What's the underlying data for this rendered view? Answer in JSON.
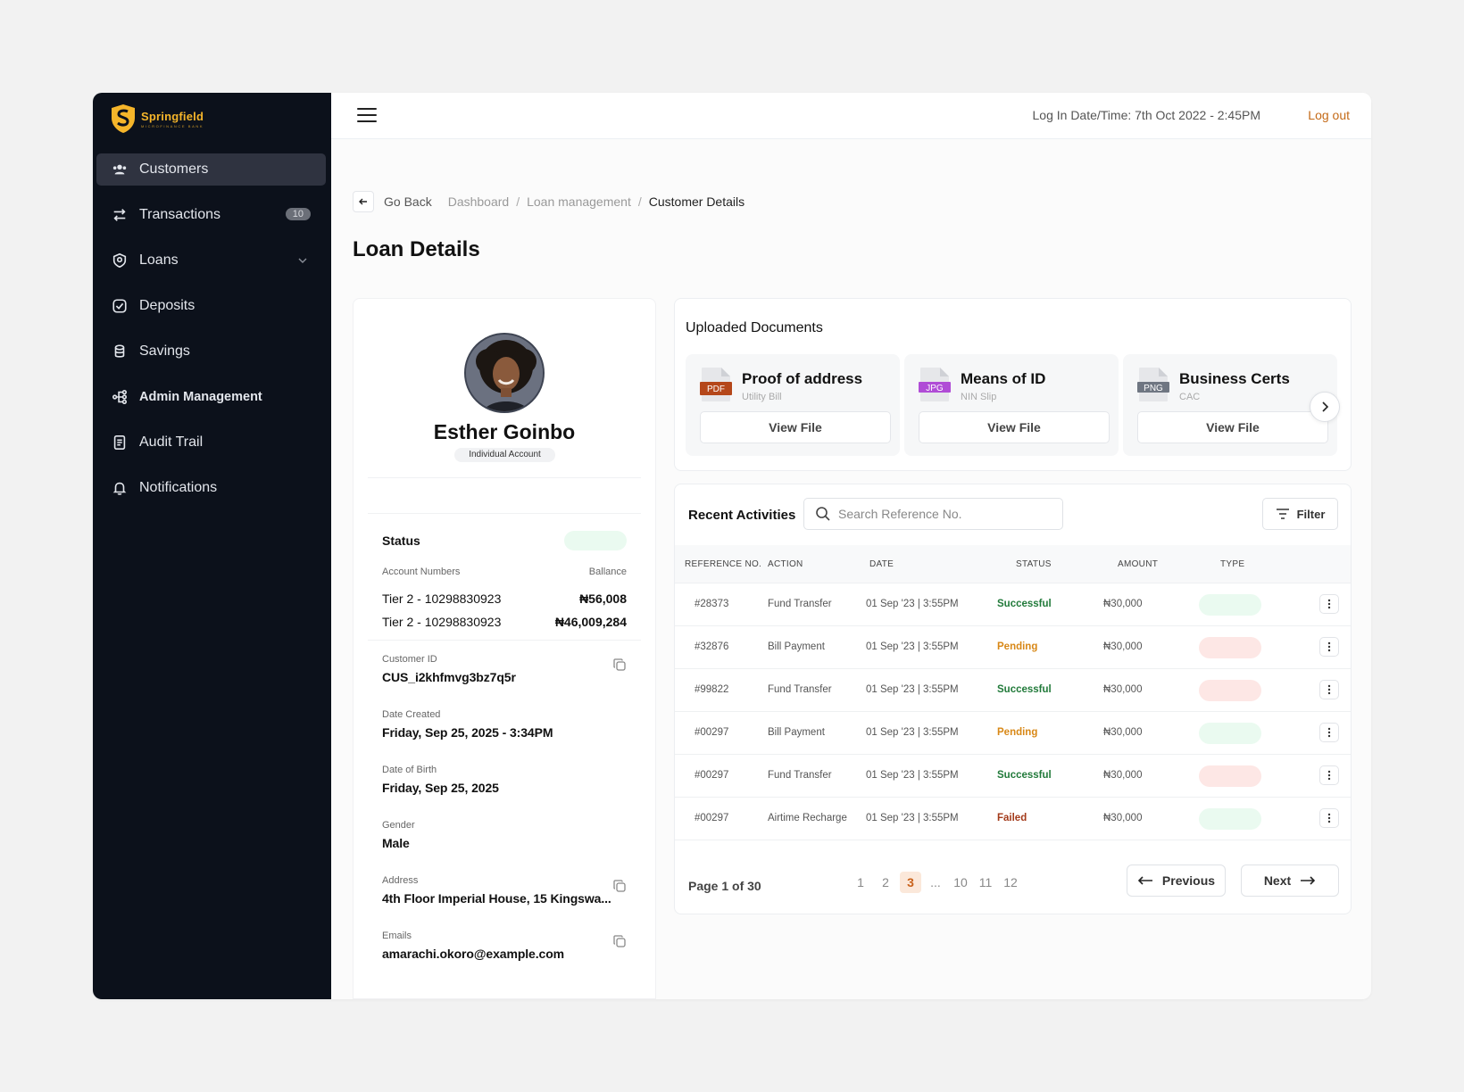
{
  "brand": {
    "name": "Springfield",
    "tagline": "MICROFINANCE BANK",
    "accent": "#f5b52a"
  },
  "sidebar": {
    "items": [
      {
        "label": "Customers",
        "icon": "users-icon",
        "active": true
      },
      {
        "label": "Transactions",
        "icon": "transfer-arrows-icon",
        "badge": "10"
      },
      {
        "label": "Loans",
        "icon": "loan-shield-icon",
        "has_dropdown": true
      },
      {
        "label": "Deposits",
        "icon": "deposit-icon"
      },
      {
        "label": "Savings",
        "icon": "coins-icon"
      },
      {
        "label": "Admin Management",
        "icon": "hierarchy-icon"
      },
      {
        "label": "Audit Trail",
        "icon": "document-list-icon"
      },
      {
        "label": "Notifications",
        "icon": "bell-icon"
      }
    ]
  },
  "header": {
    "login_time": "Log In Date/Time: 7th Oct 2022 - 2:45PM",
    "logout_label": "Log out",
    "logout_color": "#c46a17"
  },
  "breadcrumb": {
    "back_label": "Go Back",
    "items": [
      "Dashboard",
      "Loan management",
      "Customer Details"
    ]
  },
  "page_title": "Loan Details",
  "profile": {
    "name": "Esther Goinbo",
    "account_type": "Individual Account",
    "status_label": "Status",
    "accounts_header": "Account Numbers",
    "balance_header": "Ballance",
    "accounts": [
      {
        "number": "Tier 2 - 10298830923",
        "balance": "₦56,008"
      },
      {
        "number": "Tier 2 - 10298830923",
        "balance": "₦46,009,284"
      }
    ],
    "customer_id_label": "Customer ID",
    "customer_id": "CUS_i2khfmvg3bz7q5r",
    "date_created_label": "Date Created",
    "date_created": "Friday, Sep 25, 2025 - 3:34PM",
    "dob_label": "Date of Birth",
    "dob": "Friday, Sep 25, 2025",
    "gender_label": "Gender",
    "gender": "Male",
    "address_label": "Address",
    "address": "4th Floor Imperial House, 15 Kingswa...",
    "emails_label": "Emails",
    "email": "amarachi.okoro@example.com"
  },
  "documents": {
    "title": "Uploaded Documents",
    "items": [
      {
        "name": "Proof of address",
        "sub": "Utility Bill",
        "ext": "PDF",
        "ext_color": "#b5471a",
        "button": "View File"
      },
      {
        "name": "Means of ID",
        "sub": "NIN Slip",
        "ext": "JPG",
        "ext_color": "#b04cd6",
        "button": "View File"
      },
      {
        "name": "Business Certs",
        "sub": "CAC",
        "ext": "PNG",
        "ext_color": "#6f7682",
        "button": "View File"
      }
    ]
  },
  "activities": {
    "title": "Recent Activities",
    "search_placeholder": "Search Reference No.",
    "filter_label": "Filter",
    "columns": [
      "REFERENCE NO.",
      "ACTION",
      "DATE",
      "STATUS",
      "AMOUNT",
      "TYPE"
    ],
    "rows": [
      {
        "ref": "#28373",
        "action": "Fund Transfer",
        "date": "01 Sep '23 | 3:55PM",
        "status": "Successful",
        "status_kind": "success",
        "amount": "₦30,000",
        "type_color": "#eafaf0"
      },
      {
        "ref": "#32876",
        "action": "Bill Payment",
        "date": "01 Sep '23 | 3:55PM",
        "status": "Pending",
        "status_kind": "pending",
        "amount": "₦30,000",
        "type_color": "#fde7e5"
      },
      {
        "ref": "#99822",
        "action": "Fund Transfer",
        "date": "01 Sep '23 | 3:55PM",
        "status": "Successful",
        "status_kind": "success",
        "amount": "₦30,000",
        "type_color": "#fde7e5"
      },
      {
        "ref": "#00297",
        "action": "Bill Payment",
        "date": "01 Sep '23 | 3:55PM",
        "status": "Pending",
        "status_kind": "pending",
        "amount": "₦30,000",
        "type_color": "#eafaf0"
      },
      {
        "ref": "#00297",
        "action": "Fund Transfer",
        "date": "01 Sep '23 | 3:55PM",
        "status": "Successful",
        "status_kind": "success",
        "amount": "₦30,000",
        "type_color": "#fde7e5"
      },
      {
        "ref": "#00297",
        "action": "Airtime Recharge",
        "date": "01 Sep '23 | 3:55PM",
        "status": "Failed",
        "status_kind": "failed",
        "amount": "₦30,000",
        "type_color": "#eafaf0"
      }
    ],
    "pagination": {
      "label": "Page 1 of 30",
      "pages": [
        "1",
        "2",
        "3",
        "...",
        "10",
        "11",
        "12"
      ],
      "current": "3",
      "prev_label": "Previous",
      "next_label": "Next"
    }
  }
}
